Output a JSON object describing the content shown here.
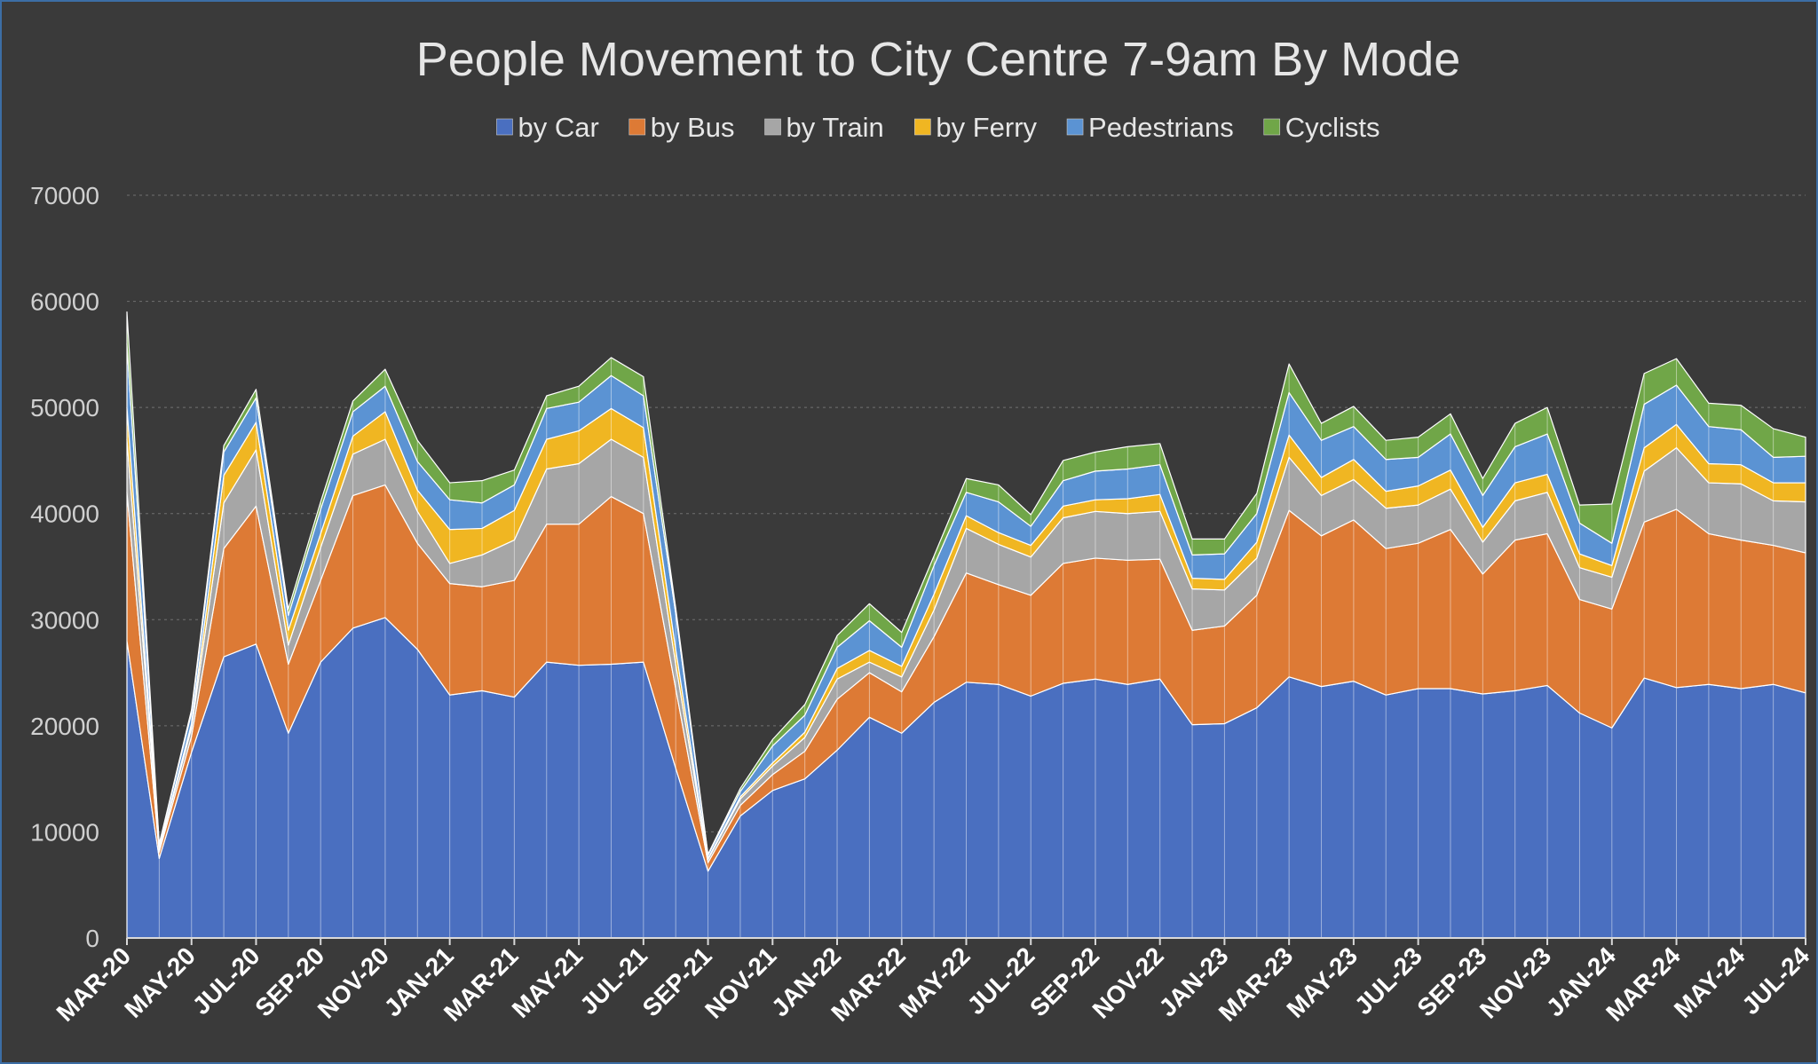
{
  "chart_data": {
    "type": "area",
    "stacked": true,
    "title": "People Movement to City Centre 7-9am By Mode",
    "legend_position": "top",
    "grid": true,
    "ylim": [
      0,
      70000
    ],
    "yticks": [
      0,
      10000,
      20000,
      30000,
      40000,
      50000,
      60000,
      70000
    ],
    "x": [
      "MAR-20",
      "APR-20",
      "MAY-20",
      "JUN-20",
      "JUL-20",
      "AUG-20",
      "SEP-20",
      "OCT-20",
      "NOV-20",
      "DEC-20",
      "JAN-21",
      "FEB-21",
      "MAR-21",
      "APR-21",
      "MAY-21",
      "JUN-21",
      "JUL-21",
      "AUG-21",
      "SEP-21",
      "OCT-21",
      "NOV-21",
      "DEC-21",
      "JAN-22",
      "FEB-22",
      "MAR-22",
      "APR-22",
      "MAY-22",
      "JUN-22",
      "JUL-22",
      "AUG-22",
      "SEP-22",
      "OCT-22",
      "NOV-22",
      "DEC-22",
      "JAN-23",
      "FEB-23",
      "MAR-23",
      "APR-23",
      "MAY-23",
      "JUN-23",
      "JUL-23",
      "AUG-23",
      "SEP-23",
      "OCT-23",
      "NOV-23",
      "DEC-23",
      "JAN-24",
      "FEB-24",
      "MAR-24",
      "APR-24",
      "MAY-24",
      "JUN-24",
      "JUL-24"
    ],
    "xtick_labels": [
      "MAR-20",
      "MAY-20",
      "JUL-20",
      "SEP-20",
      "NOV-20",
      "JAN-21",
      "MAR-21",
      "MAY-21",
      "JUL-21",
      "SEP-21",
      "NOV-21",
      "JAN-22",
      "MAR-22",
      "MAY-22",
      "JUL-22",
      "SEP-22",
      "NOV-22",
      "JAN-23",
      "MAR-23",
      "MAY-23",
      "JUL-23",
      "SEP-23",
      "NOV-23",
      "JAN-24",
      "MAR-24",
      "MAY-24",
      "JUL-24"
    ],
    "series": [
      {
        "name": "by Car",
        "color": "#4a6fc0",
        "values": [
          28000,
          7500,
          17500,
          26500,
          27700,
          19300,
          26000,
          29200,
          30200,
          27200,
          22900,
          23300,
          22700,
          26000,
          25700,
          25800,
          26000,
          16000,
          6300,
          11500,
          13900,
          15000,
          17700,
          20800,
          19300,
          22200,
          24100,
          23900,
          22800,
          24000,
          24400,
          23900,
          24400,
          20100,
          20200,
          21700,
          24600,
          23700,
          24200,
          22900,
          23500,
          23500,
          23000,
          23300,
          23800,
          21200,
          19800,
          24500,
          23600,
          23900,
          23500,
          23900,
          23100
        ]
      },
      {
        "name": "by Bus",
        "color": "#dd7a35",
        "values": [
          14000,
          600,
          1500,
          10200,
          13000,
          6500,
          7700,
          12500,
          12500,
          10000,
          10500,
          9800,
          11000,
          13000,
          13300,
          15800,
          14000,
          7500,
          800,
          1000,
          1500,
          2600,
          4800,
          4200,
          3900,
          6200,
          10300,
          9400,
          9500,
          11300,
          11400,
          11700,
          11300,
          8900,
          9200,
          10600,
          15700,
          14200,
          15200,
          13800,
          13700,
          15000,
          11300,
          14200,
          14300,
          10700,
          11200,
          14700,
          16800,
          14200,
          14000,
          13100,
          13200
        ]
      },
      {
        "name": "by Train",
        "color": "#a6a6a6",
        "values": [
          5000,
          300,
          800,
          4300,
          5300,
          1800,
          3100,
          3900,
          4300,
          3000,
          1900,
          3000,
          3800,
          5200,
          5700,
          5400,
          5300,
          2300,
          300,
          600,
          800,
          1300,
          1900,
          1000,
          1400,
          2500,
          4200,
          3800,
          3600,
          4300,
          4400,
          4400,
          4500,
          3900,
          3400,
          3500,
          5000,
          3800,
          3800,
          3800,
          3600,
          3800,
          3000,
          3700,
          3900,
          3000,
          3000,
          4800,
          5800,
          4800,
          5300,
          4200,
          4800
        ]
      },
      {
        "name": "by Ferry",
        "color": "#f0b622",
        "values": [
          3000,
          100,
          400,
          2600,
          2600,
          1400,
          1300,
          1700,
          2600,
          2000,
          3200,
          2500,
          2800,
          2800,
          3100,
          2900,
          2800,
          1400,
          100,
          200,
          300,
          500,
          1000,
          1100,
          1000,
          1500,
          1200,
          1100,
          1100,
          1100,
          1100,
          1400,
          1600,
          1000,
          1000,
          1500,
          2100,
          1700,
          1900,
          1600,
          1800,
          1800,
          1400,
          1700,
          1700,
          1300,
          1100,
          2200,
          2200,
          1800,
          1800,
          1700,
          1800
        ]
      },
      {
        "name": "Pedestrians",
        "color": "#5b93d3",
        "values": [
          6000,
          300,
          1000,
          2200,
          2300,
          1400,
          2300,
          2300,
          2400,
          2700,
          2800,
          2400,
          2400,
          2900,
          2700,
          3100,
          3000,
          3400,
          300,
          500,
          1600,
          1600,
          2000,
          2800,
          1800,
          2700,
          2200,
          2900,
          1800,
          2400,
          2700,
          2800,
          2800,
          2200,
          2400,
          2700,
          4000,
          3500,
          3100,
          3000,
          2700,
          3400,
          3000,
          3400,
          3800,
          2900,
          2100,
          4100,
          3700,
          3500,
          3300,
          2400,
          2500
        ]
      },
      {
        "name": "Cyclists",
        "color": "#70a648",
        "values": [
          3000,
          100,
          300,
          600,
          800,
          600,
          700,
          1000,
          1600,
          2000,
          1600,
          2100,
          1400,
          1200,
          1500,
          1700,
          1800,
          500,
          100,
          300,
          600,
          1000,
          1100,
          1600,
          1400,
          900,
          1300,
          1600,
          1100,
          1900,
          1800,
          2100,
          2000,
          1500,
          1400,
          1900,
          2700,
          1600,
          1900,
          1800,
          1900,
          1900,
          1600,
          2200,
          2500,
          1700,
          3700,
          2900,
          2500,
          2200,
          2300,
          2700,
          1800
        ]
      }
    ]
  }
}
